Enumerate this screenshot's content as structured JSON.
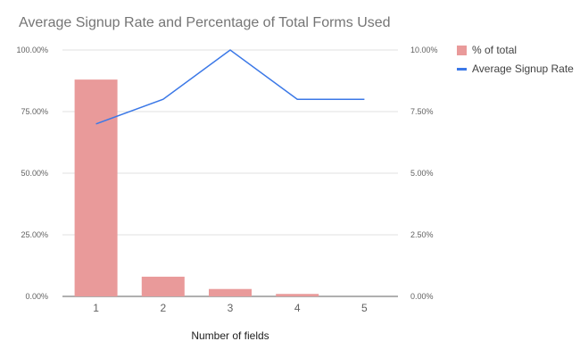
{
  "chart_data": {
    "type": "bar",
    "title": "Average Signup Rate and Percentage of Total Forms Used",
    "xlabel": "Number of fields",
    "categories": [
      "1",
      "2",
      "3",
      "4",
      "5"
    ],
    "left_axis": {
      "ylim": [
        0,
        100
      ],
      "ticks": [
        0,
        25,
        50,
        75,
        100
      ],
      "tick_labels": [
        "0.00%",
        "25.00%",
        "50.00%",
        "75.00%",
        "100.00%"
      ]
    },
    "right_axis": {
      "ylim": [
        0,
        10
      ],
      "ticks": [
        0,
        2.5,
        5,
        7.5,
        10
      ],
      "tick_labels": [
        "0.00%",
        "2.50%",
        "5.00%",
        "7.50%",
        "10.00%"
      ]
    },
    "series": [
      {
        "name": "% of total",
        "type": "bar",
        "axis": "left",
        "color": "#e99a9a",
        "values": [
          88,
          8,
          3,
          1,
          0
        ]
      },
      {
        "name": "Average Signup Rate",
        "type": "line",
        "axis": "right",
        "color": "#3b78e7",
        "values": [
          7,
          8,
          10,
          8,
          8
        ]
      }
    ],
    "grid": true,
    "legend_position": "top-right"
  }
}
